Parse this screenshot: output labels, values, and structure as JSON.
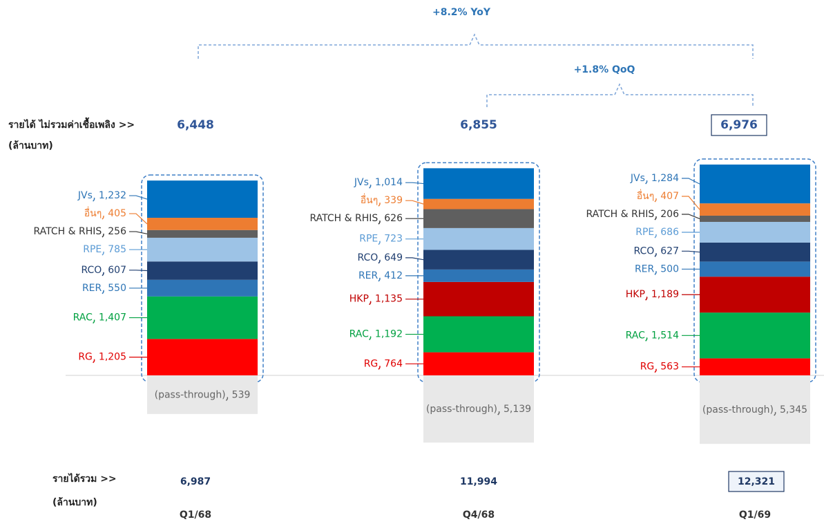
{
  "chart_data": {
    "type": "stacked_bar",
    "annotations": {
      "yoy": "+8.2% YoY",
      "qoq": "+1.8% QoQ"
    },
    "row_labels": {
      "non_fuel": "รายได้ ไม่รวมค่าเชื้อเพลิง >>",
      "non_fuel_unit": "(ล้านบาท)",
      "total": "รายได้รวม >>",
      "total_unit": "(ล้านบาท)"
    },
    "categories": [
      "Q1/68",
      "Q4/68",
      "Q1/69"
    ],
    "ylim": [
      0,
      7000
    ],
    "series": [
      {
        "name": "RG",
        "color": "#ff0000",
        "label_color": "#e00000",
        "values": [
          1205,
          764,
          563
        ],
        "value_labels": [
          "1,205",
          "764",
          "563"
        ]
      },
      {
        "name": "RAC",
        "color": "#00b050",
        "label_color": "#00a040",
        "values": [
          1407,
          1192,
          1514
        ],
        "value_labels": [
          "1,407",
          "1,192",
          "1,514"
        ]
      },
      {
        "name": "HKP",
        "color": "#c00000",
        "label_color": "#c00000",
        "values": [
          null,
          1135,
          1189
        ],
        "value_labels": [
          null,
          "1,135",
          "1,189"
        ]
      },
      {
        "name": "RER",
        "color": "#2e75b6",
        "label_color": "#2e75b6",
        "values": [
          550,
          412,
          500
        ],
        "value_labels": [
          "550",
          "412",
          "500"
        ]
      },
      {
        "name": "RCO",
        "color": "#203f70",
        "label_color": "#203f70",
        "values": [
          607,
          649,
          627
        ],
        "value_labels": [
          "607",
          "649",
          "627"
        ]
      },
      {
        "name": "RPE",
        "color": "#9dc3e6",
        "label_color": "#5b9bd5",
        "values": [
          785,
          723,
          686
        ],
        "value_labels": [
          "785",
          "723",
          "686"
        ]
      },
      {
        "name": "RATCH & RHIS",
        "color": "#5f5f5f",
        "label_color": "#333333",
        "values": [
          256,
          626,
          206
        ],
        "value_labels": [
          "256",
          "626",
          "206"
        ]
      },
      {
        "name": "อื่นๆ",
        "color": "#ed7d31",
        "label_color": "#ed7d31",
        "values": [
          405,
          339,
          407
        ],
        "value_labels": [
          "405",
          "339",
          "407"
        ]
      },
      {
        "name": "JVs",
        "color": "#0070c0",
        "label_color": "#2e75b6",
        "values": [
          1232,
          1014,
          1284
        ],
        "value_labels": [
          "1,232",
          "1,014",
          "1,284"
        ]
      }
    ],
    "pass_through": {
      "name": "(pass-through)",
      "color": "#e8e8e8",
      "label_color": "#666666",
      "values": [
        539,
        5139,
        5345
      ],
      "value_labels": [
        "539",
        "5,139",
        "5,345"
      ]
    },
    "totals": [
      6448,
      6855,
      6976
    ],
    "totals_labels": [
      "6,448",
      "6,855",
      "6,976"
    ],
    "total_revenue": [
      6987,
      11994,
      12321
    ],
    "total_revenue_labels": [
      "6,987",
      "11,994",
      "12,321"
    ]
  }
}
